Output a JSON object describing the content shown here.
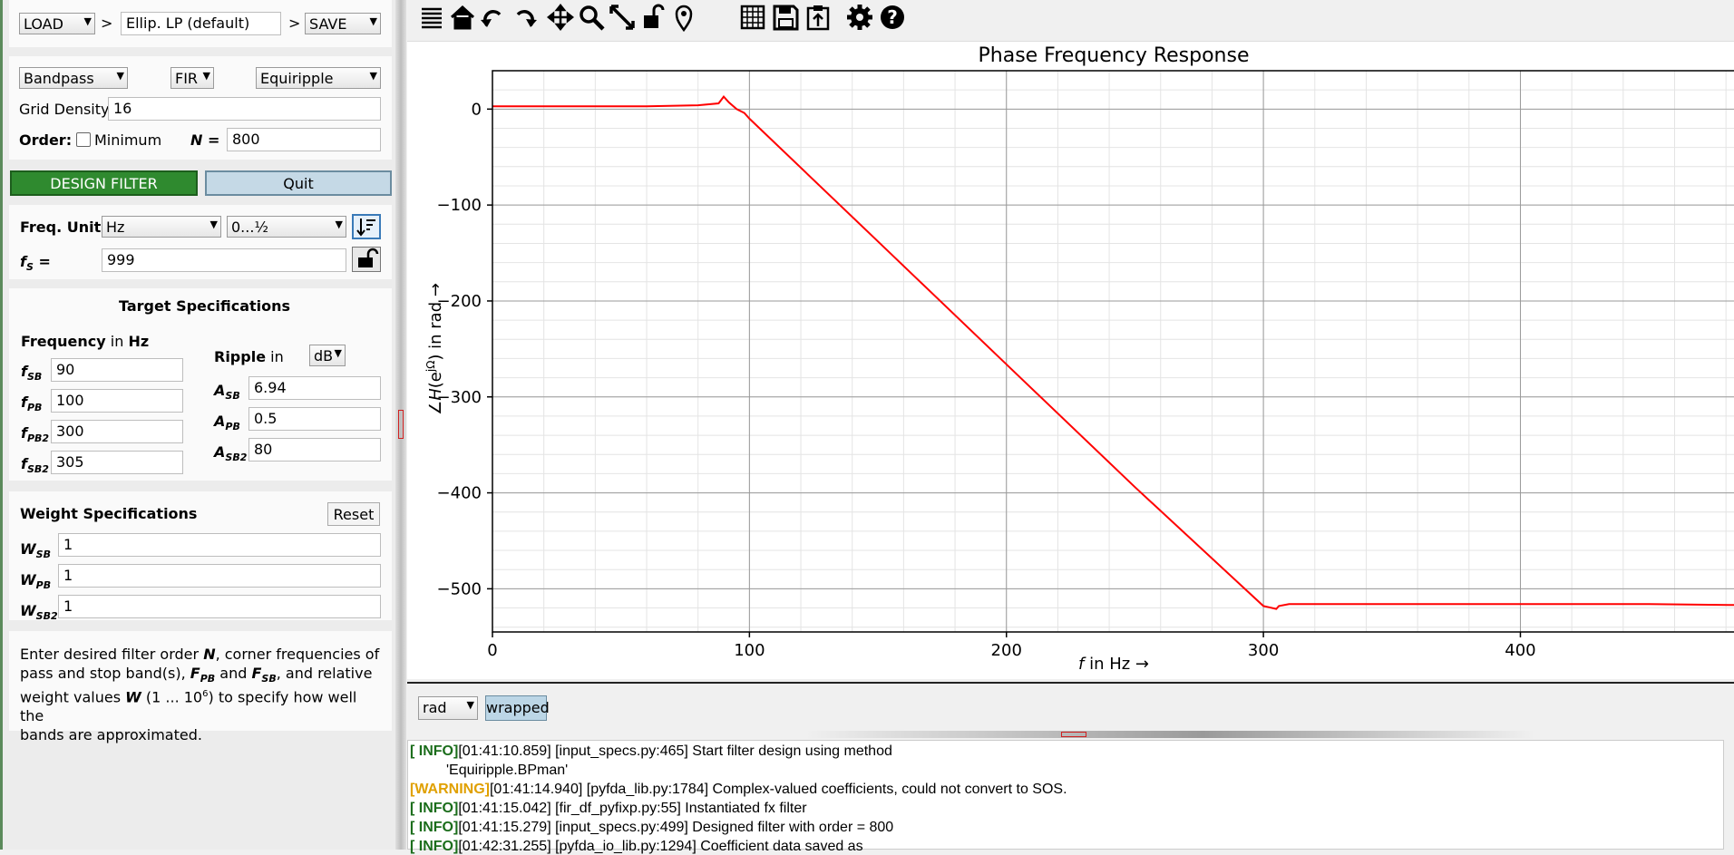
{
  "top": {
    "load_label": "LOAD",
    "sep1": ">",
    "filter_name": "Ellip. LP (default)",
    "sep2": ">",
    "save_label": "SAVE"
  },
  "design": {
    "response_type": "Bandpass",
    "filter_class": "FIR",
    "method": "Equiripple",
    "grid_density_label": "Grid Density",
    "grid_density": "16",
    "order_label": "Order:",
    "minimum_label": "Minimum",
    "n_label": "N =",
    "n_value": "800",
    "design_button": "DESIGN FILTER",
    "quit_button": "Quit",
    "freq_unit_label": "Freq. Unit",
    "freq_unit": "Hz",
    "freq_range": "0...½",
    "fs_label": "f",
    "fs_sub": "S",
    "fs_eq": "=",
    "fs_value": "999"
  },
  "target": {
    "title": "Target Specifications",
    "freq_label": "Frequency",
    "freq_unit_text": "in",
    "freq_unit": "Hz",
    "ripple_label": "Ripple",
    "ripple_in": "in",
    "ripple_unit": "dB",
    "freqs": [
      {
        "sym": "f",
        "sub": "SB",
        "value": "90"
      },
      {
        "sym": "f",
        "sub": "PB",
        "value": "100"
      },
      {
        "sym": "f",
        "sub": "PB2",
        "value": "300"
      },
      {
        "sym": "f",
        "sub": "SB2",
        "value": "305"
      }
    ],
    "amps": [
      {
        "sym": "A",
        "sub": "SB",
        "value": "6.94"
      },
      {
        "sym": "A",
        "sub": "PB",
        "value": "0.5"
      },
      {
        "sym": "A",
        "sub": "SB2",
        "value": "80"
      }
    ]
  },
  "weights": {
    "title": "Weight Specifications",
    "reset_label": "Reset",
    "items": [
      {
        "sym": "W",
        "sub": "SB",
        "value": "1"
      },
      {
        "sym": "W",
        "sub": "PB",
        "value": "1"
      },
      {
        "sym": "W",
        "sub": "SB2",
        "value": "1"
      }
    ]
  },
  "help": {
    "l1a": "Enter desired filter order ",
    "l1b": "N",
    "l1c": ", corner frequencies of",
    "l2a": "pass and stop band(s), ",
    "l2b": "F",
    "l2bs": "PB",
    "l2c": " and ",
    "l2d": "F",
    "l2ds": "SB",
    "l2e": ", and relative",
    "l3a": "weight values ",
    "l3b": "W",
    "l3c": " (1 ... 10",
    "l3d": "6",
    "l3e": ") to specify how well the",
    "l4": "bands are approximated."
  },
  "plot": {
    "bottom_unit": "rad",
    "wrapped_label": "wrapped"
  },
  "chart_data": {
    "type": "line",
    "title": "Phase Frequency Response",
    "xlabel_italic": "f",
    "xlabel_rest": " in Hz →",
    "ylabel_prefix": "∠",
    "ylabel_h": "H",
    "ylabel_rest": "(e",
    "ylabel_sup": "jΩ",
    "ylabel_tail": ") in rad →",
    "xlim": [
      0,
      487
    ],
    "ylim": [
      -545,
      40
    ],
    "x_ticks": [
      0,
      100,
      200,
      300,
      400
    ],
    "y_ticks": [
      0,
      -100,
      -200,
      -300,
      -400,
      -500
    ],
    "y_tick_labels": [
      "0",
      "−100",
      "−200",
      "−300",
      "−400",
      "−500"
    ],
    "grid": true,
    "line_color": "#ff0000",
    "series": [
      {
        "x": [
          0,
          20,
          40,
          60,
          80,
          88,
          90,
          92,
          95,
          98,
          100,
          150,
          200,
          250,
          300,
          305,
          306,
          310,
          350,
          400,
          450,
          487
        ],
        "y": [
          3,
          3,
          3,
          3,
          4,
          6,
          13,
          7,
          0,
          -4,
          -10,
          -138,
          -266,
          -394,
          -518,
          -521,
          -518,
          -516,
          -516,
          -516,
          -516,
          -517
        ]
      }
    ]
  },
  "log": {
    "lines": [
      {
        "level": "[ INFO]",
        "kind": "info",
        "text": "[01:41:10.859] [input_specs.py:465] Start filter design using method"
      },
      {
        "level": "",
        "kind": "cont",
        "text": "'Equiripple.BPman'"
      },
      {
        "level": "[WARNING]",
        "kind": "warn",
        "text": "[01:41:14.940] [pyfda_lib.py:1784] Complex-valued coefficients, could not convert to SOS."
      },
      {
        "level": "[ INFO]",
        "kind": "info",
        "text": "[01:41:15.042] [fir_df_pyfixp.py:55] Instantiated fx filter"
      },
      {
        "level": "[ INFO]",
        "kind": "info",
        "text": "[01:41:15.279] [input_specs.py:499] Designed filter with order = 800"
      },
      {
        "level": "[ INFO]",
        "kind": "info",
        "text": "[01:42:31.255] [pyfda_io_lib.py:1294] Coefficient data saved as"
      }
    ]
  },
  "toolbar": {
    "icons": [
      "menu-icon",
      "home-icon",
      "undo-icon",
      "redo-icon",
      "pan-icon",
      "zoom-icon",
      "zoom-full-icon",
      "lock-icon",
      "marker-icon",
      "grid-icon",
      "save-icon",
      "clipboard-icon",
      "settings-icon",
      "help-icon"
    ]
  }
}
